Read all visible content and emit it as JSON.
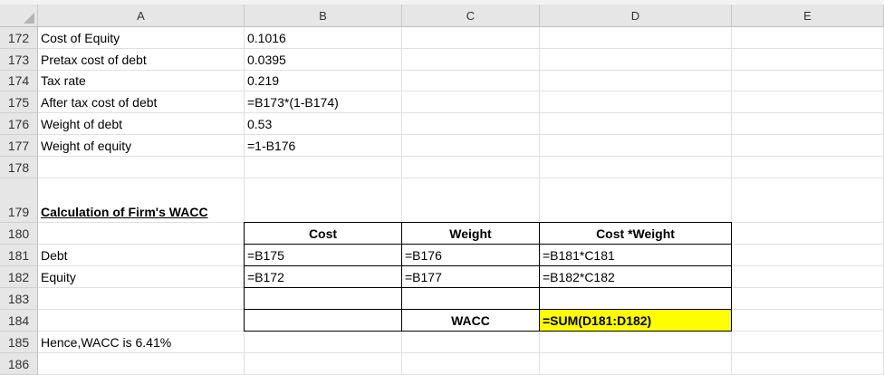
{
  "columns": [
    "A",
    "B",
    "C",
    "D",
    "E"
  ],
  "rows": [
    {
      "num": "172",
      "A": "Cost of Equity",
      "B": "0.1016",
      "C": "",
      "D": ""
    },
    {
      "num": "173",
      "A": "Pretax cost of debt",
      "B": "0.0395",
      "C": "",
      "D": ""
    },
    {
      "num": "174",
      "A": "Tax rate",
      "B": "0.219",
      "C": "",
      "D": ""
    },
    {
      "num": "175",
      "A": "After tax cost of debt",
      "B": "=B173*(1-B174)",
      "C": "",
      "D": ""
    },
    {
      "num": "176",
      "A": "Weight of debt",
      "B": "0.53",
      "C": "",
      "D": ""
    },
    {
      "num": "177",
      "A": "Weight of equity",
      "B": "=1-B176",
      "C": "",
      "D": ""
    },
    {
      "num": "178",
      "A": "",
      "B": "",
      "C": "",
      "D": ""
    },
    {
      "num": "179",
      "A": "Calculation of Firm's WACC",
      "B": "",
      "C": "",
      "D": ""
    },
    {
      "num": "180",
      "A": "",
      "B": "Cost",
      "C": "Weight",
      "D": "Cost *Weight"
    },
    {
      "num": "181",
      "A": "Debt",
      "B": "=B175",
      "C": "=B176",
      "D": "=B181*C181"
    },
    {
      "num": "182",
      "A": "Equity",
      "B": "=B172",
      "C": "=B177",
      "D": "=B182*C182"
    },
    {
      "num": "183",
      "A": "",
      "B": "",
      "C": "",
      "D": ""
    },
    {
      "num": "184",
      "A": "",
      "B": "",
      "C": "WACC",
      "D": "=SUM(D181:D182)"
    },
    {
      "num": "185",
      "A": "Hence,WACC is 6.41%",
      "B": "",
      "C": "",
      "D": ""
    },
    {
      "num": "186",
      "A": "",
      "B": "",
      "C": "",
      "D": ""
    }
  ],
  "colors": {
    "highlight": "#ffff00",
    "header_bg": "#e6e6e6"
  }
}
